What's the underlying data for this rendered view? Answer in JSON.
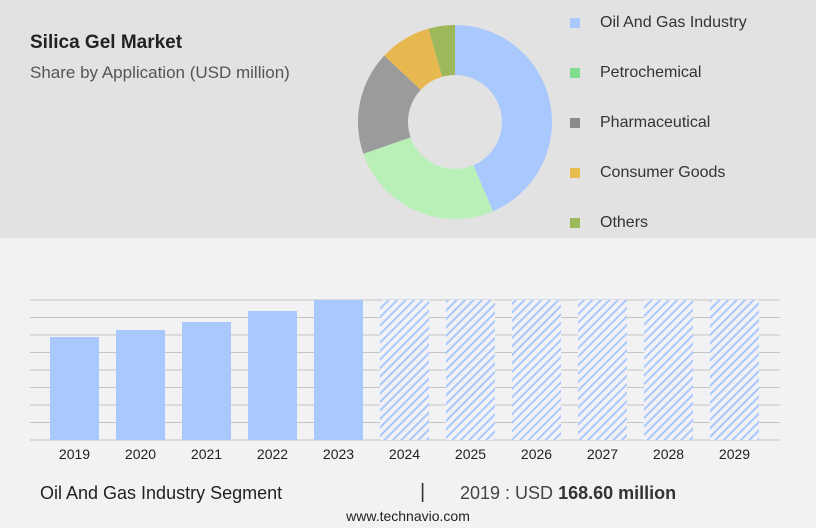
{
  "title": "Silica Gel Market",
  "subtitle": "Share by Application (USD million)",
  "chart_data": [
    {
      "type": "pie",
      "donut": true,
      "categories": [
        "Oil And Gas Industry",
        "Petrochemical",
        "Pharmaceutical",
        "Consumer Goods",
        "Others"
      ],
      "values": [
        43.6,
        26.1,
        17.3,
        8.6,
        4.4
      ],
      "colors": [
        "#a8c8fe",
        "#b8f0b8",
        "#9b9b9b",
        "#e8b850",
        "#9cb85a"
      ],
      "legend_colors": [
        "#a8c8fe",
        "#7ee08f",
        "#8a8a8a",
        "#e8bd50",
        "#9cba5a"
      ],
      "legend": "right"
    },
    {
      "type": "bar",
      "categories": [
        "2019",
        "2020",
        "2021",
        "2022",
        "2023",
        "2024",
        "2025",
        "2026",
        "2027",
        "2028",
        "2029"
      ],
      "values": [
        168.6,
        180.1,
        193.2,
        211.2,
        229.2,
        null,
        null,
        null,
        null,
        null,
        null
      ],
      "forecast": [
        "2024",
        "2025",
        "2026",
        "2027",
        "2028",
        "2029"
      ],
      "bar_color": "#a8c8fe",
      "grid": true
    }
  ],
  "footer": {
    "segment": "Oil And Gas Industry Segment",
    "separator": "|",
    "year_label": "2019 : USD ",
    "value": "168.60 million",
    "site": "www.technavio.com"
  }
}
